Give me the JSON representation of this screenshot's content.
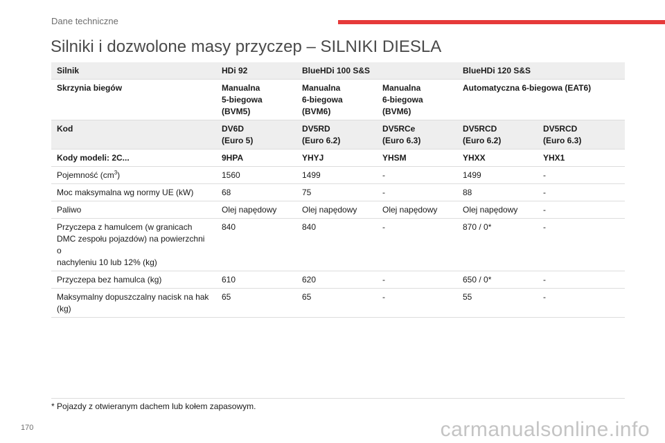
{
  "header": {
    "section": "Dane techniczne",
    "accent_color": "#e63a3a"
  },
  "title": "Silniki i dozwolone masy przyczep – SILNIKI DIESLA",
  "table": {
    "row_silnik": {
      "label": "Silnik",
      "c1": "HDi 92",
      "c2": "BlueHDi 100 S&S",
      "c4": "BlueHDi 120 S&S"
    },
    "row_skrzynia": {
      "label": "Skrzynia biegów",
      "c1": [
        "Manualna",
        "5-biegowa",
        "(BVM5)"
      ],
      "c2": [
        "Manualna",
        "6-biegowa",
        "(BVM6)"
      ],
      "c3": [
        "Manualna",
        "6-biegowa",
        "(BVM6)"
      ],
      "c4": "Automatyczna 6-biegowa (EAT6)"
    },
    "row_kod": {
      "label": "Kod",
      "c1": [
        "DV6D",
        "(Euro 5)"
      ],
      "c2": [
        "DV5RD",
        "(Euro 6.2)"
      ],
      "c3": [
        "DV5RCe",
        "(Euro 6.3)"
      ],
      "c4": [
        "DV5RCD",
        "(Euro 6.2)"
      ],
      "c5": [
        "DV5RCD",
        "(Euro 6.3)"
      ]
    },
    "row_kody": {
      "label": "Kody modeli: 2C...",
      "cells": [
        "9HPA",
        "YHYJ",
        "YHSM",
        "YHXX",
        "YHX1"
      ]
    },
    "row_pojemnosc": {
      "label": "Pojemność (cm",
      "label_sup": "3",
      "label_end": ")",
      "cells": [
        "1560",
        "1499",
        "-",
        "1499",
        "-"
      ]
    },
    "row_moc": {
      "label": "Moc maksymalna wg normy UE (kW)",
      "cells": [
        "68",
        "75",
        "-",
        "88",
        "-"
      ]
    },
    "row_paliwo": {
      "label": "Paliwo",
      "cells": [
        "Olej napędowy",
        "Olej napędowy",
        "Olej napędowy",
        "Olej napędowy",
        "-"
      ]
    },
    "row_hamulec": {
      "label": [
        "Przyczepa z hamulcem (w granicach",
        "DMC zespołu pojazdów) na powierzchni o",
        "nachyleniu 10 lub 12% (kg)"
      ],
      "cells": [
        "840",
        "840",
        "-",
        "870 / 0*",
        "-"
      ]
    },
    "row_bez_hamulca": {
      "label": "Przyczepa bez hamulca (kg)",
      "cells": [
        "610",
        "620",
        "-",
        "650 / 0*",
        "-"
      ]
    },
    "row_nacisk": {
      "label": [
        "Maksymalny dopuszczalny nacisk na hak",
        "(kg)"
      ],
      "cells": [
        "65",
        "65",
        "-",
        "55",
        "-"
      ]
    }
  },
  "footnote": "* Pojazdy z otwieranym dachem lub kołem zapasowym.",
  "page_number": "170",
  "watermark": "carmanualsonline.info"
}
